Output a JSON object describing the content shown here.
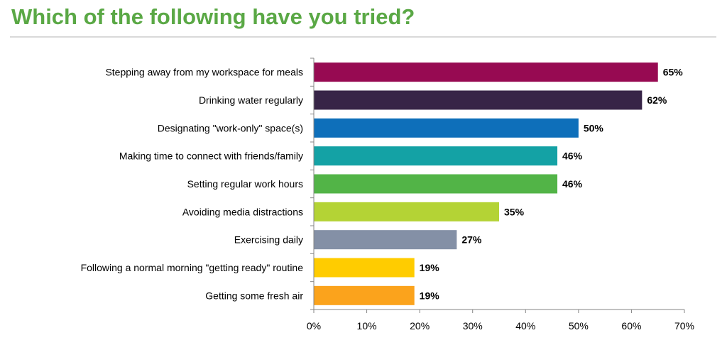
{
  "title": "Which of the following have you tried?",
  "chart_data": {
    "type": "bar",
    "orientation": "horizontal",
    "title": "Which of the following have you tried?",
    "xlabel": "",
    "ylabel": "",
    "xlim": [
      0,
      70
    ],
    "x_ticks": [
      0,
      10,
      20,
      30,
      40,
      50,
      60,
      70
    ],
    "x_tick_labels": [
      "0%",
      "10%",
      "20%",
      "30%",
      "40%",
      "50%",
      "60%",
      "70%"
    ],
    "grid": false,
    "legend": "none",
    "categories": [
      "Stepping away from my workspace for meals",
      "Drinking water regularly",
      "Designating \"work-only\" space(s)",
      "Making time to connect with friends/family",
      "Setting regular work hours",
      "Avoiding media distractions",
      "Exercising daily",
      "Following a normal morning \"getting ready\" routine",
      "Getting some fresh air"
    ],
    "values": [
      65,
      62,
      50,
      46,
      46,
      35,
      27,
      19,
      19
    ],
    "value_labels": [
      "65%",
      "62%",
      "50%",
      "46%",
      "46%",
      "35%",
      "27%",
      "19%",
      "19%"
    ],
    "colors": [
      "#970a52",
      "#372447",
      "#0e6fba",
      "#14a2a5",
      "#52b447",
      "#b4d335",
      "#8490a6",
      "#ffcc00",
      "#fba31c"
    ]
  }
}
